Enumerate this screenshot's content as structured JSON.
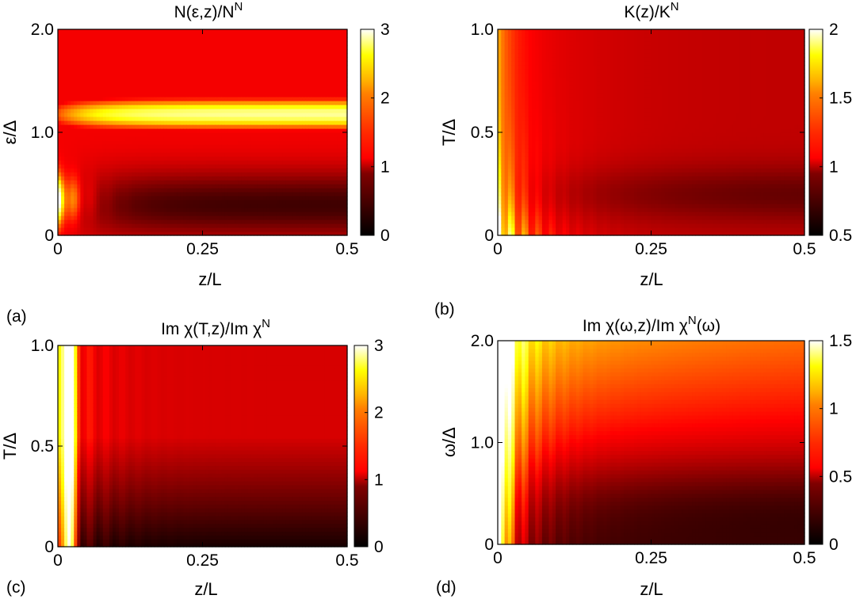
{
  "figure": {
    "colormap": "hot"
  },
  "chart_data": [
    {
      "panel": "(a)",
      "type": "heatmap",
      "title": "N(ε,z)/N",
      "title_sup": "N",
      "xlabel": "z/L",
      "ylabel": "ε/Δ",
      "xlim": [
        0,
        0.5
      ],
      "ylim": [
        0,
        2.0
      ],
      "xticks": [
        {
          "v": 0,
          "t": "0"
        },
        {
          "v": 0.25,
          "t": "0.25"
        },
        {
          "v": 0.5,
          "t": "0.5"
        }
      ],
      "yticks": [
        {
          "v": 0,
          "t": "0"
        },
        {
          "v": 1.0,
          "t": "1.0"
        },
        {
          "v": 2.0,
          "t": "2.0"
        }
      ],
      "clim": [
        0,
        3
      ],
      "cticks": [
        {
          "v": 0,
          "t": "0"
        },
        {
          "v": 1,
          "t": "1"
        },
        {
          "v": 2,
          "t": "2"
        },
        {
          "v": 3,
          "t": "3"
        }
      ],
      "model": "dos"
    },
    {
      "panel": "(b)",
      "type": "heatmap",
      "title": "K(z)/K",
      "title_sup": "N",
      "xlabel": "z/L",
      "ylabel": "T/Δ",
      "xlim": [
        0,
        0.5
      ],
      "ylim": [
        0,
        1.0
      ],
      "xticks": [
        {
          "v": 0,
          "t": "0"
        },
        {
          "v": 0.25,
          "t": "0.25"
        },
        {
          "v": 0.5,
          "t": "0.5"
        }
      ],
      "yticks": [
        {
          "v": 0,
          "t": "0"
        },
        {
          "v": 0.5,
          "t": "0.5"
        },
        {
          "v": 1.0,
          "t": "1.0"
        }
      ],
      "clim": [
        0.5,
        2
      ],
      "cticks": [
        {
          "v": 0.5,
          "t": "0.5"
        },
        {
          "v": 1,
          "t": "1"
        },
        {
          "v": 1.5,
          "t": "1.5"
        },
        {
          "v": 2,
          "t": "2"
        }
      ],
      "model": "kinetic"
    },
    {
      "panel": "(c)",
      "type": "heatmap",
      "title": "Im χ(T,z)/Im χ",
      "title_sup": "N",
      "xlabel": "z/L",
      "ylabel": "T/Δ",
      "xlim": [
        0,
        0.5
      ],
      "ylim": [
        0,
        1.0
      ],
      "xticks": [
        {
          "v": 0,
          "t": "0"
        },
        {
          "v": 0.25,
          "t": "0.25"
        },
        {
          "v": 0.5,
          "t": "0.5"
        }
      ],
      "yticks": [
        {
          "v": 0,
          "t": "0"
        },
        {
          "v": 0.5,
          "t": "0.5"
        },
        {
          "v": 1.0,
          "t": "1.0"
        }
      ],
      "clim": [
        0,
        3
      ],
      "cticks": [
        {
          "v": 0,
          "t": "0"
        },
        {
          "v": 1,
          "t": "1"
        },
        {
          "v": 2,
          "t": "2"
        },
        {
          "v": 3,
          "t": "3"
        }
      ],
      "model": "suscT"
    },
    {
      "panel": "(d)",
      "type": "heatmap",
      "title": "Im χ(ω,z)/Im χ",
      "title_sup": "N",
      "title_tail": "(ω)",
      "xlabel": "z/L",
      "ylabel": "ω/Δ",
      "xlim": [
        0,
        0.5
      ],
      "ylim": [
        0,
        2.0
      ],
      "xticks": [
        {
          "v": 0,
          "t": "0"
        },
        {
          "v": 0.25,
          "t": "0.25"
        },
        {
          "v": 0.5,
          "t": "0.5"
        }
      ],
      "yticks": [
        {
          "v": 0,
          "t": "0"
        },
        {
          "v": 1.0,
          "t": "1.0"
        },
        {
          "v": 2.0,
          "t": "2.0"
        }
      ],
      "clim": [
        0,
        1.5
      ],
      "cticks": [
        {
          "v": 0,
          "t": "0"
        },
        {
          "v": 0.5,
          "t": "0.5"
        },
        {
          "v": 1,
          "t": "1"
        },
        {
          "v": 1.5,
          "t": "1.5"
        }
      ],
      "model": "suscW"
    }
  ]
}
